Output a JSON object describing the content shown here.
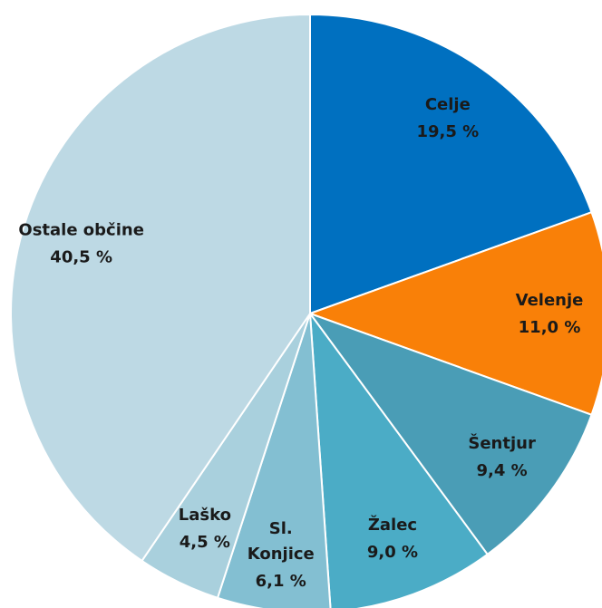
{
  "chart_data": {
    "type": "pie",
    "categories": [
      "Celje",
      "Velenje",
      "Šentjur",
      "Žalec",
      "Sl. Konjice",
      "Laško",
      "Ostale občine"
    ],
    "values": [
      19.5,
      11.0,
      9.4,
      9.0,
      6.1,
      4.5,
      40.5
    ],
    "value_labels": [
      "19,5 %",
      "11,0 %",
      "9,4 %",
      "9,0 %",
      "6,1 %",
      "4,5 %",
      "40,5 %"
    ],
    "colors": [
      "#0070c0",
      "#f98008",
      "#4a9db6",
      "#4bacc6",
      "#83bfd2",
      "#a9d0dd",
      "#bdd9e4"
    ]
  }
}
